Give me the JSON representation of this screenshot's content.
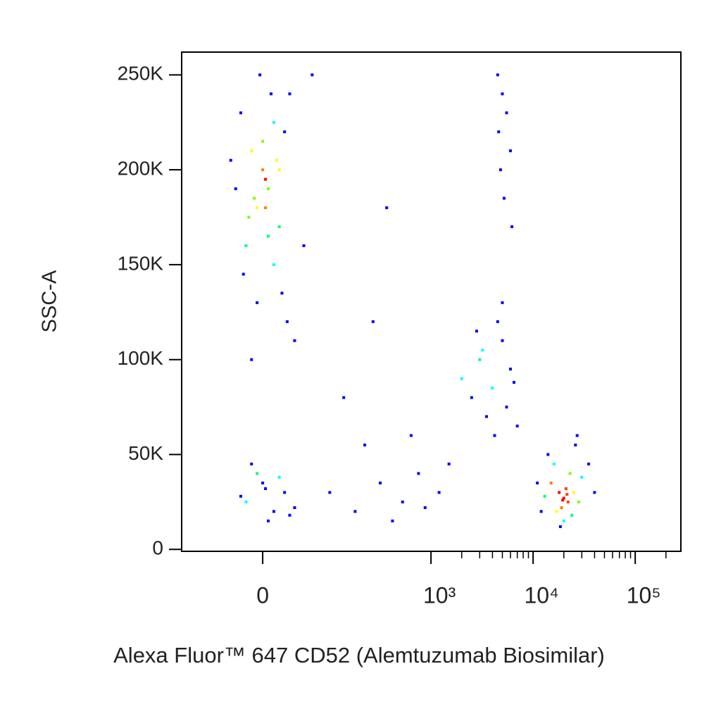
{
  "chart_data": {
    "type": "scatter",
    "xlabel": "Alexa Fluor™ 647 CD52 (Alemtuzumab Biosimilar)",
    "ylabel": "SSC-A",
    "xscale": "biexponential",
    "xlim": [
      -200,
      280000
    ],
    "ylim": [
      -1000,
      262000
    ],
    "xticks": [
      {
        "value": 0,
        "label": "0"
      },
      {
        "value": 1000,
        "label": "10³"
      },
      {
        "value": 10000,
        "label": "10⁴"
      },
      {
        "value": 100000,
        "label": "10⁵"
      }
    ],
    "xminorticks": [
      2000,
      3000,
      4000,
      5000,
      6000,
      7000,
      8000,
      9000,
      20000,
      30000,
      40000,
      50000,
      60000,
      70000,
      80000,
      90000,
      200000
    ],
    "yticks": [
      {
        "value": 0,
        "label": "0"
      },
      {
        "value": 50000,
        "label": "50K"
      },
      {
        "value": 100000,
        "label": "100K"
      },
      {
        "value": 150000,
        "label": "150K"
      },
      {
        "value": 200000,
        "label": "200K"
      },
      {
        "value": 250000,
        "label": "250K"
      }
    ],
    "x": [
      -20,
      10,
      30,
      -40,
      0,
      20,
      -10,
      40,
      -30,
      15,
      5,
      -25,
      35,
      -5,
      25,
      -15,
      45,
      -35,
      10,
      0,
      60,
      -50,
      20,
      -10,
      30,
      80,
      -60,
      5,
      50,
      -20,
      -30,
      0,
      20,
      -10,
      40,
      10,
      -20,
      60,
      30,
      -40,
      5,
      50,
      150,
      250,
      400,
      600,
      800,
      300,
      500,
      1200,
      700,
      200,
      900,
      350,
      1500,
      450,
      100,
      2000,
      3000,
      4000,
      5000,
      6000,
      3500,
      4500,
      2500,
      5500,
      7000,
      3200,
      4200,
      6500,
      2800,
      5000,
      4500,
      5000,
      5500,
      6000,
      4800,
      5200,
      6200,
      4600,
      20000,
      18000,
      22000,
      15000,
      25000,
      19000,
      21000,
      17000,
      23000,
      13000,
      28000,
      16000,
      24000,
      20000,
      14000,
      30000,
      12000,
      26000,
      19500,
      21500,
      35000,
      11000,
      18500,
      27000,
      40000
    ],
    "values": [
      210000,
      190000,
      170000,
      230000,
      200000,
      150000,
      180000,
      220000,
      160000,
      240000,
      195000,
      175000,
      135000,
      250000,
      205000,
      185000,
      120000,
      145000,
      165000,
      215000,
      110000,
      190000,
      225000,
      130000,
      200000,
      160000,
      205000,
      180000,
      240000,
      100000,
      25000,
      35000,
      20000,
      40000,
      30000,
      15000,
      45000,
      22000,
      38000,
      28000,
      32000,
      18000,
      30000,
      20000,
      35000,
      25000,
      40000,
      55000,
      15000,
      30000,
      60000,
      80000,
      22000,
      120000,
      45000,
      180000,
      250000,
      90000,
      100000,
      85000,
      110000,
      95000,
      70000,
      120000,
      80000,
      75000,
      65000,
      105000,
      60000,
      88000,
      115000,
      130000,
      250000,
      240000,
      230000,
      210000,
      200000,
      185000,
      170000,
      220000,
      27000,
      30000,
      25000,
      35000,
      30000,
      22000,
      32000,
      20000,
      40000,
      28000,
      25000,
      45000,
      18000,
      15000,
      50000,
      38000,
      20000,
      55000,
      26000,
      29000,
      45000,
      35000,
      12000,
      60000,
      30000
    ],
    "colors": [
      "#ffff00",
      "#80ff00",
      "#00ff80",
      "#0000ff",
      "#ff8000",
      "#00ffff",
      "#ffff00",
      "#0000ff",
      "#00ff80",
      "#0000ff",
      "#ff0000",
      "#80ff00",
      "#0000ff",
      "#0000ff",
      "#ffff00",
      "#80ff00",
      "#0000ff",
      "#0000ff",
      "#00ff80",
      "#80ff00",
      "#0000ff",
      "#0000ff",
      "#00ffff",
      "#0000ff",
      "#ffff00",
      "#0000ff",
      "#0000ff",
      "#ff8000",
      "#0000ff",
      "#0000ff",
      "#00ffff",
      "#0000ff",
      "#0000ff",
      "#00ff80",
      "#0000ff",
      "#0000ff",
      "#0000ff",
      "#0000ff",
      "#00ffff",
      "#0000ff",
      "#0000ff",
      "#0000ff",
      "#0000ff",
      "#0000ff",
      "#0000ff",
      "#0000ff",
      "#0000ff",
      "#0000ff",
      "#0000ff",
      "#0000ff",
      "#0000ff",
      "#0000ff",
      "#0000ff",
      "#0000ff",
      "#0000ff",
      "#0000ff",
      "#0000ff",
      "#00ffff",
      "#00ff80",
      "#00ffff",
      "#0000ff",
      "#0000ff",
      "#0000ff",
      "#0000ff",
      "#0000ff",
      "#0000ff",
      "#0000ff",
      "#00ffff",
      "#0000ff",
      "#0000ff",
      "#0000ff",
      "#0000ff",
      "#0000ff",
      "#0000ff",
      "#0000ff",
      "#0000ff",
      "#0000ff",
      "#0000ff",
      "#0000ff",
      "#0000ff",
      "#ff0000",
      "#ff0000",
      "#ff4000",
      "#ff8000",
      "#ffff00",
      "#ff8000",
      "#ff4000",
      "#ffff00",
      "#80ff00",
      "#00ff80",
      "#80ff00",
      "#00ffff",
      "#00ff80",
      "#00ffff",
      "#0000ff",
      "#00ffff",
      "#0000ff",
      "#0000ff",
      "#ff0000",
      "#ff4000",
      "#0000ff",
      "#0000ff",
      "#0000ff",
      "#0000ff",
      "#0000ff"
    ]
  }
}
